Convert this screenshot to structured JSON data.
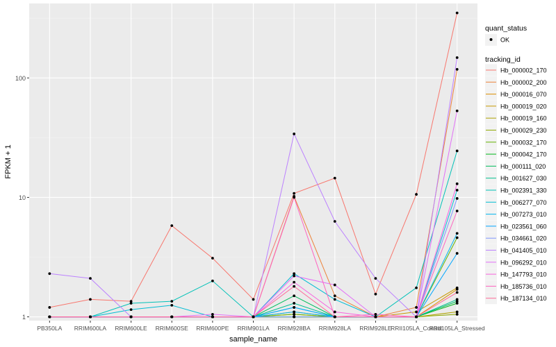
{
  "chart_data": {
    "type": "line",
    "xlabel": "sample_name",
    "ylabel": "FPKM + 1",
    "y_scale": "log10",
    "ylim": [
      0.93,
      420
    ],
    "y_ticks": [
      1,
      10,
      100
    ],
    "y_tick_labels": [
      "1",
      "10",
      "100"
    ],
    "categories": [
      "PB350LA",
      "RRIM600LA",
      "RRIM600LE",
      "RRIM600SE",
      "RRIM600PE",
      "RRIM901LA",
      "RRIM928BA",
      "RRIM928LA",
      "RRIM928LE",
      "RRII105LA_Control",
      "RRII105LA_Stressed"
    ],
    "point_legend": {
      "title": "quant_status",
      "entries": [
        "OK"
      ]
    },
    "legend_title": "tracking_id",
    "legend_position": "right",
    "series": [
      {
        "name": "Hb_000002_170",
        "color": "#F8766D",
        "values": [
          1.2,
          1.4,
          1.35,
          5.8,
          3.1,
          1.4,
          10.8,
          14.5,
          1.55,
          10.6,
          350
        ]
      },
      {
        "name": "Hb_000002_200",
        "color": "#EC8239",
        "values": [
          1.0,
          1.0,
          1.0,
          1.0,
          1.0,
          1.0,
          10.2,
          1.5,
          1.0,
          1.2,
          118
        ]
      },
      {
        "name": "Hb_000016_070",
        "color": "#DB8E00",
        "values": [
          1.0,
          1.0,
          1.0,
          1.0,
          1.0,
          1.0,
          1.1,
          1.0,
          1.0,
          1.0,
          1.7
        ]
      },
      {
        "name": "Hb_000019_020",
        "color": "#C79800",
        "values": [
          1.0,
          1.0,
          1.0,
          1.0,
          1.0,
          1.0,
          1.05,
          1.0,
          1.0,
          1.1,
          1.75
        ]
      },
      {
        "name": "Hb_000019_160",
        "color": "#AEA200",
        "values": [
          1.0,
          1.0,
          1.0,
          1.0,
          1.0,
          1.0,
          1.0,
          1.0,
          1.0,
          1.0,
          1.1
        ]
      },
      {
        "name": "Hb_000029_230",
        "color": "#8FAA00",
        "values": [
          1.0,
          1.0,
          1.0,
          1.0,
          1.0,
          1.0,
          1.0,
          1.0,
          1.0,
          1.0,
          1.05
        ]
      },
      {
        "name": "Hb_000032_170",
        "color": "#64B200",
        "values": [
          1.0,
          1.0,
          1.0,
          1.0,
          1.0,
          1.0,
          1.05,
          1.0,
          1.0,
          1.0,
          4.6
        ]
      },
      {
        "name": "Hb_000042_170",
        "color": "#00B81B",
        "values": [
          1.0,
          1.0,
          1.0,
          1.0,
          1.0,
          1.0,
          1.0,
          1.0,
          1.0,
          1.0,
          1.3
        ]
      },
      {
        "name": "Hb_000111_020",
        "color": "#00BD5C",
        "values": [
          1.0,
          1.0,
          1.0,
          1.0,
          1.0,
          1.0,
          1.5,
          1.0,
          1.0,
          1.0,
          1.35
        ]
      },
      {
        "name": "Hb_001627_030",
        "color": "#00C08E",
        "values": [
          1.0,
          1.0,
          1.0,
          1.0,
          1.0,
          1.0,
          1.3,
          1.0,
          1.0,
          1.0,
          1.4
        ]
      },
      {
        "name": "Hb_002391_330",
        "color": "#00C1B7",
        "values": [
          1.0,
          1.0,
          1.3,
          1.35,
          2.0,
          1.0,
          1.2,
          1.0,
          1.0,
          1.75,
          24.5
        ]
      },
      {
        "name": "Hb_006277_070",
        "color": "#00BDD4",
        "values": [
          1.0,
          1.0,
          1.15,
          1.25,
          1.0,
          1.0,
          2.3,
          1.4,
          1.0,
          1.0,
          11.5
        ]
      },
      {
        "name": "Hb_007273_010",
        "color": "#00B5EE",
        "values": [
          1.0,
          1.0,
          1.0,
          1.0,
          1.0,
          1.0,
          1.1,
          1.0,
          1.0,
          1.0,
          5.0
        ]
      },
      {
        "name": "Hb_023561_060",
        "color": "#00A7FF",
        "values": [
          1.0,
          1.0,
          1.0,
          1.0,
          1.0,
          1.0,
          1.2,
          1.0,
          1.0,
          1.0,
          3.4
        ]
      },
      {
        "name": "Hb_034661_020",
        "color": "#7F96FF",
        "values": [
          1.0,
          1.0,
          1.0,
          1.0,
          1.0,
          1.0,
          1.0,
          1.0,
          1.0,
          1.0,
          9.8
        ]
      },
      {
        "name": "Hb_041405_010",
        "color": "#BC81FF",
        "values": [
          2.3,
          2.1,
          1.0,
          1.0,
          1.0,
          1.0,
          34.0,
          6.3,
          2.1,
          1.0,
          148
        ]
      },
      {
        "name": "Hb_096292_010",
        "color": "#E26EF7",
        "values": [
          1.0,
          1.0,
          1.0,
          1.0,
          1.05,
          1.0,
          2.2,
          1.85,
          1.0,
          1.0,
          53.0
        ]
      },
      {
        "name": "Hb_147793_010",
        "color": "#F863DF",
        "values": [
          1.0,
          1.0,
          1.0,
          1.0,
          1.0,
          1.0,
          1.95,
          1.1,
          1.0,
          1.0,
          13.0
        ]
      },
      {
        "name": "Hb_185736_010",
        "color": "#FF62BF",
        "values": [
          1.0,
          1.0,
          1.0,
          1.0,
          1.0,
          1.0,
          10.0,
          1.0,
          1.05,
          1.0,
          7.7
        ]
      },
      {
        "name": "Hb_187134_010",
        "color": "#FF6A98",
        "values": [
          1.0,
          1.0,
          1.0,
          1.0,
          1.0,
          1.0,
          1.8,
          1.0,
          1.0,
          1.0,
          1.6
        ]
      }
    ]
  }
}
